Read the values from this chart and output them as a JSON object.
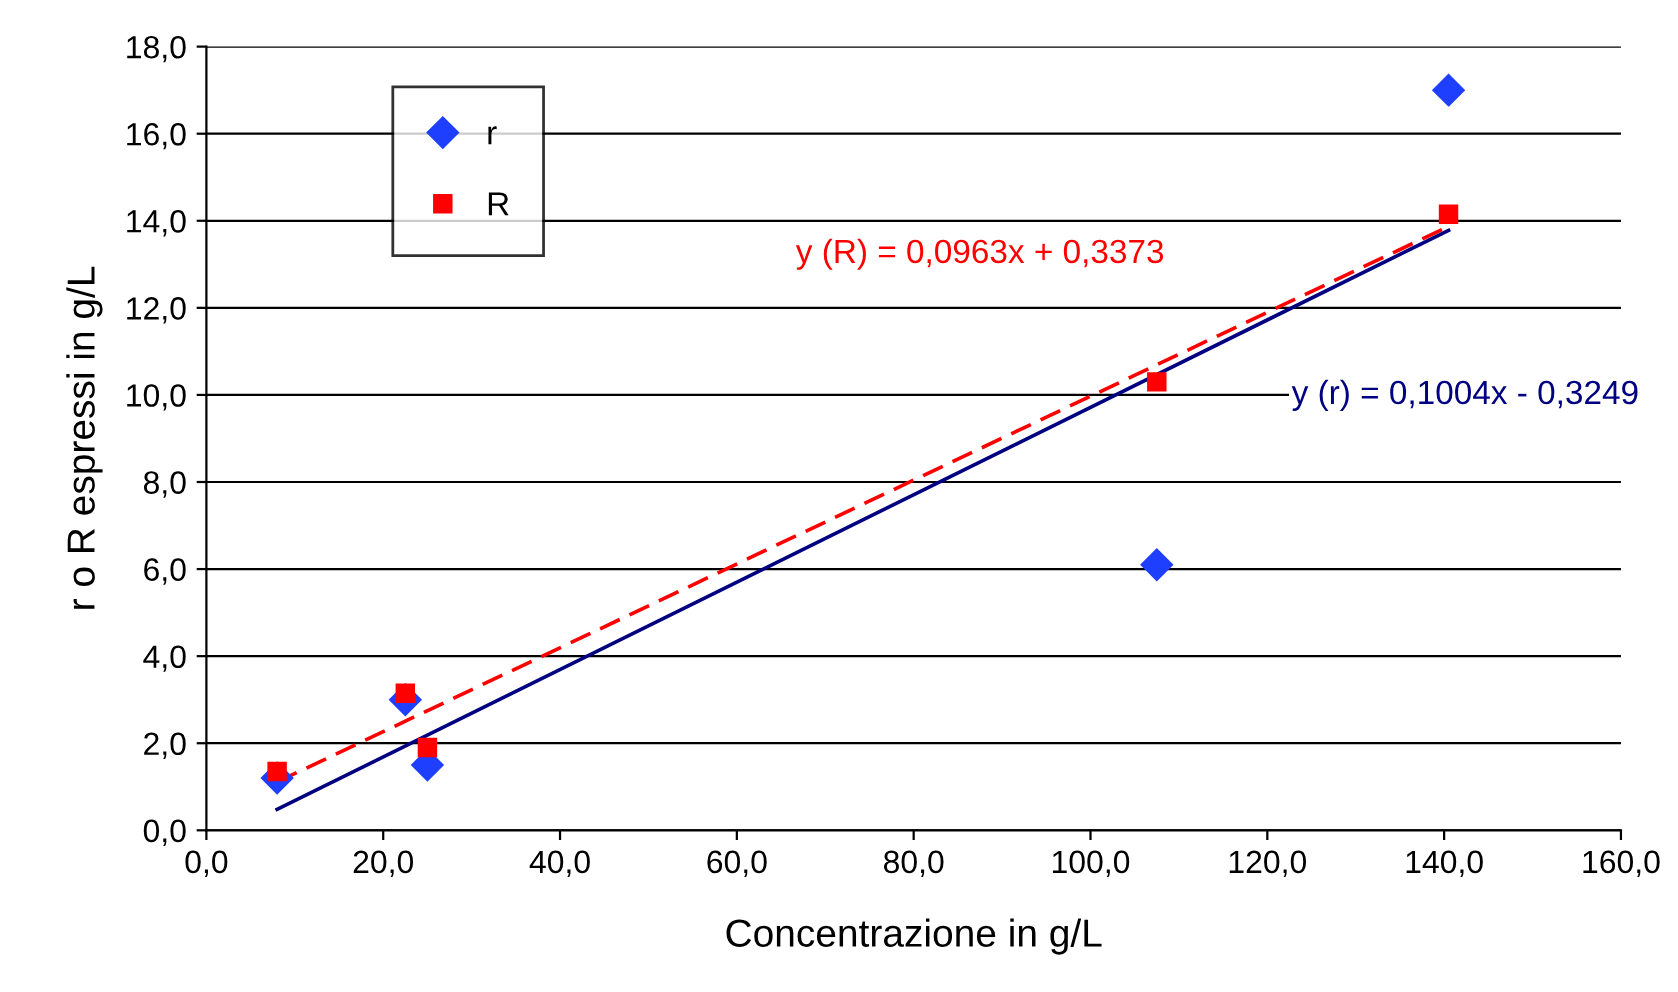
{
  "chart_data": {
    "type": "scatter",
    "xlabel": "Concentrazione in g/L",
    "ylabel": "r o R espressi in g/L",
    "xlim": [
      0,
      160
    ],
    "ylim": [
      0,
      18
    ],
    "xticks": [
      {
        "value": 0,
        "label": "0,0"
      },
      {
        "value": 20,
        "label": "20,0"
      },
      {
        "value": 40,
        "label": "40,0"
      },
      {
        "value": 60,
        "label": "60,0"
      },
      {
        "value": 80,
        "label": "80,0"
      },
      {
        "value": 100,
        "label": "100,0"
      },
      {
        "value": 120,
        "label": "120,0"
      },
      {
        "value": 140,
        "label": "140,0"
      },
      {
        "value": 160,
        "label": "160,0"
      }
    ],
    "yticks": [
      {
        "value": 0,
        "label": "0,0"
      },
      {
        "value": 2,
        "label": "2,0"
      },
      {
        "value": 4,
        "label": "4,0"
      },
      {
        "value": 6,
        "label": "6,0"
      },
      {
        "value": 8,
        "label": "8,0"
      },
      {
        "value": 10,
        "label": "10,0"
      },
      {
        "value": 12,
        "label": "12,0"
      },
      {
        "value": 14,
        "label": "14,0"
      },
      {
        "value": 16,
        "label": "16,0"
      },
      {
        "value": 18,
        "label": "18,0"
      }
    ],
    "grid": "y",
    "legend": "top left",
    "series": [
      {
        "name": "r",
        "marker": "diamond",
        "color": "#1f3fff",
        "x": [
          8,
          22.5,
          25,
          107.5,
          140.5
        ],
        "values": [
          1.2,
          3.0,
          1.5,
          6.1,
          17.0
        ]
      },
      {
        "name": "R",
        "marker": "square",
        "color": "#ff0000",
        "x": [
          8,
          22.5,
          25,
          107.5,
          140.5
        ],
        "values": [
          1.35,
          3.15,
          1.9,
          10.3,
          14.15
        ]
      },
      {
        "type": "line",
        "line_style": "solid",
        "color": "#000080",
        "x": [
          8,
          140.5
        ],
        "values": [
          0.48,
          13.78
        ]
      },
      {
        "type": "line",
        "line_style": "dashed",
        "color": "#ff0000",
        "x": [
          8,
          140.5
        ],
        "values": [
          1.11,
          13.87
        ]
      }
    ],
    "annotations": [
      "y (R) = 0,0963x + 0,3373",
      "y (r) = 0,1004x - 0,3249"
    ]
  }
}
